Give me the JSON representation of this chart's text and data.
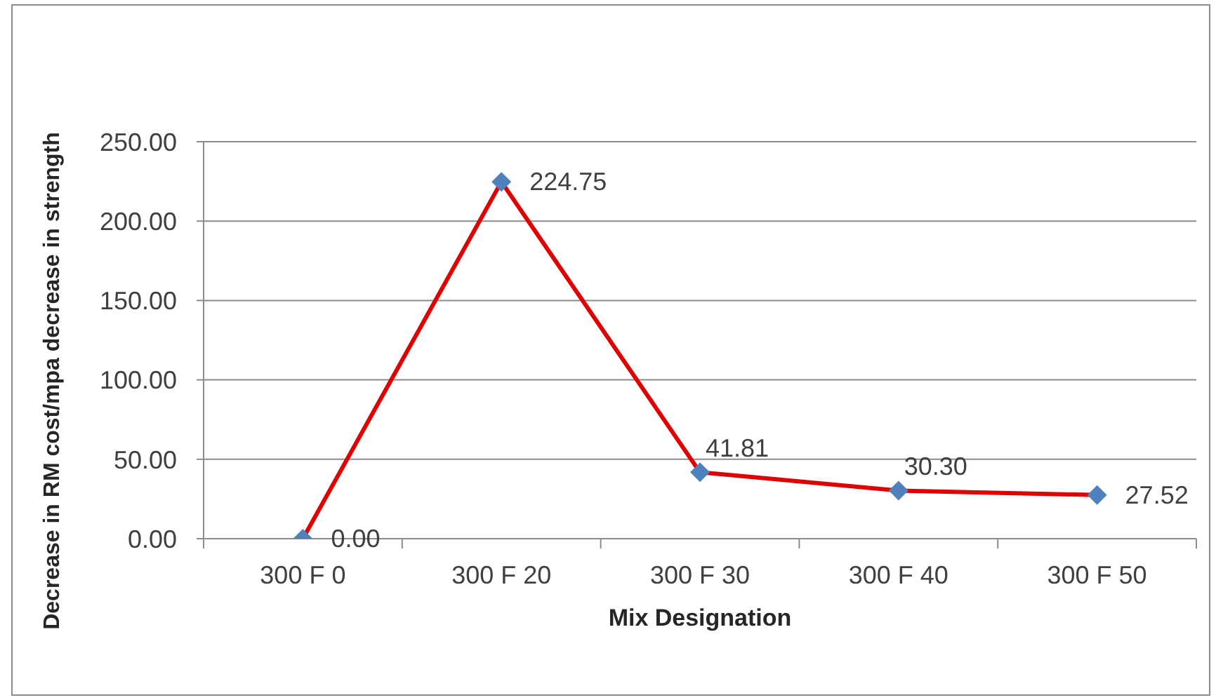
{
  "chart_data": {
    "type": "line",
    "xlabel": "Mix Designation",
    "ylabel": "Decrease in RM cost/mpa decrease in strength",
    "categories": [
      "300 F 0",
      "300 F 20",
      "300 F 30",
      "300 F 40",
      "300 F 50"
    ],
    "series": [
      {
        "color": "#e00000",
        "colors": [
          "#4f81bd",
          "#4f81bd",
          "#4f81bd",
          "#4f81bd",
          "#4f81bd"
        ],
        "values": [
          0,
          224.75,
          41.81,
          30.3,
          27.52
        ],
        "value_labels": [
          "0.00",
          "224.75",
          "41.81",
          "30.30",
          "27.52"
        ]
      }
    ],
    "ylim": [
      0,
      250
    ],
    "yticks": [
      {
        "value": 0,
        "label": "0.00"
      },
      {
        "value": 50,
        "label": "50.00"
      },
      {
        "value": 100,
        "label": "100.00"
      },
      {
        "value": 150,
        "label": "150.00"
      },
      {
        "value": 200,
        "label": "200.00"
      },
      {
        "value": 250,
        "label": "250.00"
      }
    ],
    "grid": "y",
    "marker": "diamond",
    "line_style": "solid"
  }
}
